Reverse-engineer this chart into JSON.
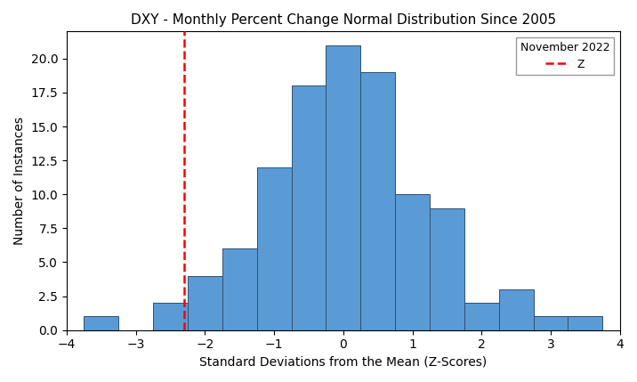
{
  "title": "DXY - Monthly Percent Change Normal Distribution Since 2005",
  "xlabel": "Standard Deviations from the Mean (Z-Scores)",
  "ylabel": "Number of Instances",
  "xlim": [
    -4,
    4
  ],
  "ylim": [
    0,
    22
  ],
  "yticks": [
    0.0,
    2.5,
    5.0,
    7.5,
    10.0,
    12.5,
    15.0,
    17.5,
    20.0
  ],
  "bar_color": "#5b9bd5",
  "bar_edgecolor": "#2f4f6f",
  "vline_x": -2.3,
  "vline_color": "red",
  "legend_title": "November 2022",
  "legend_label": "Z",
  "bar_width": 0.5,
  "bin_centers": [
    -3.5,
    -3.0,
    -2.5,
    -2.0,
    -1.5,
    -1.0,
    -0.5,
    0.0,
    0.5,
    1.0,
    1.5,
    2.0,
    2.5,
    3.0,
    3.5
  ],
  "heights": [
    1,
    0,
    2,
    4,
    6,
    12,
    18,
    21,
    19,
    10,
    9,
    2,
    3,
    1,
    1
  ]
}
